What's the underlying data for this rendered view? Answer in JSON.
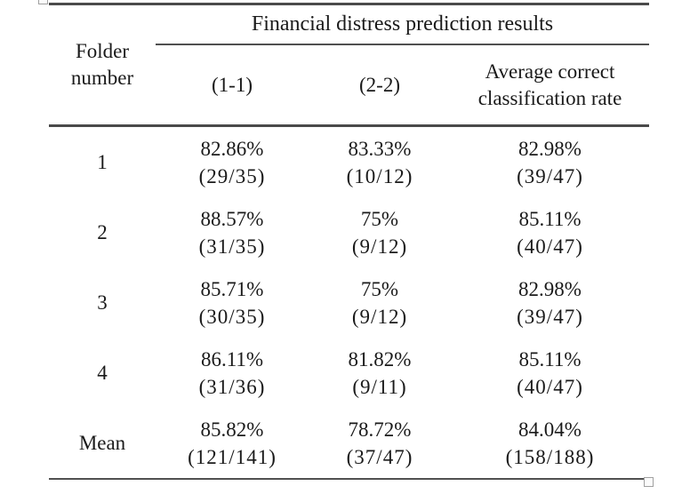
{
  "table": {
    "title": "Financial distress prediction results",
    "folder_header": {
      "line1": "Folder",
      "line2": "number"
    },
    "columns": [
      {
        "label": "(1-1)"
      },
      {
        "label": "(2-2)"
      },
      {
        "label_line1": "Average correct",
        "label_line2": "classification rate"
      }
    ],
    "rows": [
      {
        "folder": "1",
        "cells": [
          {
            "rate": "82.86%",
            "fraction": "(29/35)"
          },
          {
            "rate": "83.33%",
            "fraction": "(10/12)"
          },
          {
            "rate": "82.98%",
            "fraction": "(39/47)"
          }
        ]
      },
      {
        "folder": "2",
        "cells": [
          {
            "rate": "88.57%",
            "fraction": "(31/35)"
          },
          {
            "rate": "75%",
            "fraction": "(9/12)"
          },
          {
            "rate": "85.11%",
            "fraction": "(40/47)"
          }
        ]
      },
      {
        "folder": "3",
        "cells": [
          {
            "rate": "85.71%",
            "fraction": "(30/35)"
          },
          {
            "rate": "75%",
            "fraction": "(9/12)"
          },
          {
            "rate": "82.98%",
            "fraction": "(39/47)"
          }
        ]
      },
      {
        "folder": "4",
        "cells": [
          {
            "rate": "86.11%",
            "fraction": "(31/36)"
          },
          {
            "rate": "81.82%",
            "fraction": "(9/11)"
          },
          {
            "rate": "85.11%",
            "fraction": "(40/47)"
          }
        ]
      },
      {
        "folder": "Mean",
        "cells": [
          {
            "rate": "85.82%",
            "fraction": "(121/141)"
          },
          {
            "rate": "78.72%",
            "fraction": "(37/47)"
          },
          {
            "rate": "84.04%",
            "fraction": "(158/188)"
          }
        ]
      }
    ]
  },
  "icons": {
    "top_left": "table-move-handle",
    "bottom_right": "table-resize-handle"
  },
  "colors": {
    "text": "#1a1a1a",
    "rule": "#4a4a4a",
    "handle_border": "#a0a0a0",
    "background": "#ffffff"
  }
}
